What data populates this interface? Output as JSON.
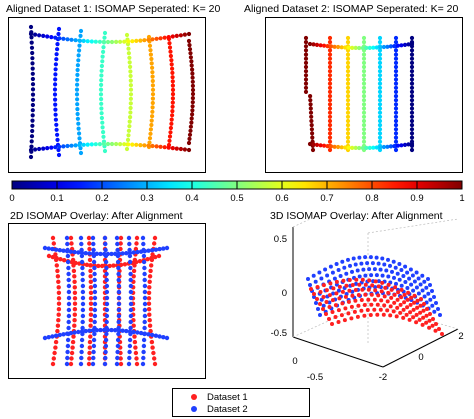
{
  "panels": {
    "aligned1_title": "Aligned Dataset 1: ISOMAP Seperated: K= 20",
    "aligned2_title": "Aligned Dataset 2: ISOMAP Seperated: K= 20",
    "overlay2d_title": "2D ISOMAP Overlay: After Alignment",
    "overlay3d_title": "3D ISOMAP Overlay: After Alignment"
  },
  "legend": {
    "dataset1_label": "Dataset 1",
    "dataset2_label": "Dataset 2",
    "dataset1_color": "#ff2020",
    "dataset2_color": "#2040ff"
  },
  "chart_data": [
    {
      "type": "scatter",
      "title": "Aligned Dataset 1: ISOMAP Seperated: K= 20",
      "color_scale": "jet",
      "color_range": [
        0,
        1
      ],
      "colorbar_ticks": [
        "0",
        "0.1",
        "0.2",
        "0.3",
        "0.4",
        "0.5",
        "0.6",
        "0.7",
        "0.8",
        "0.9",
        "1"
      ]
    },
    {
      "type": "scatter",
      "title": "Aligned Dataset 2: ISOMAP Seperated: K= 20",
      "color_scale": "jet",
      "color_range": [
        0,
        1
      ]
    },
    {
      "type": "scatter",
      "title": "2D ISOMAP Overlay: After Alignment",
      "series": [
        {
          "name": "Dataset 1",
          "color": "#ff2020"
        },
        {
          "name": "Dataset 2",
          "color": "#2040ff"
        }
      ]
    },
    {
      "type": "scatter",
      "title": "3D ISOMAP Overlay: After Alignment",
      "series": [
        {
          "name": "Dataset 1",
          "color": "#ff2020"
        },
        {
          "name": "Dataset 2",
          "color": "#2040ff"
        }
      ],
      "z_ticks": [
        "0.5",
        "0",
        "-0.5"
      ],
      "y_ticks": [
        "-2",
        "0",
        "2"
      ],
      "x_ticks": [
        "-0.5",
        "0"
      ],
      "zlim": [
        -0.5,
        0.5
      ],
      "ylim": [
        -2,
        2
      ],
      "xlim": [
        -0.5,
        0
      ]
    }
  ]
}
